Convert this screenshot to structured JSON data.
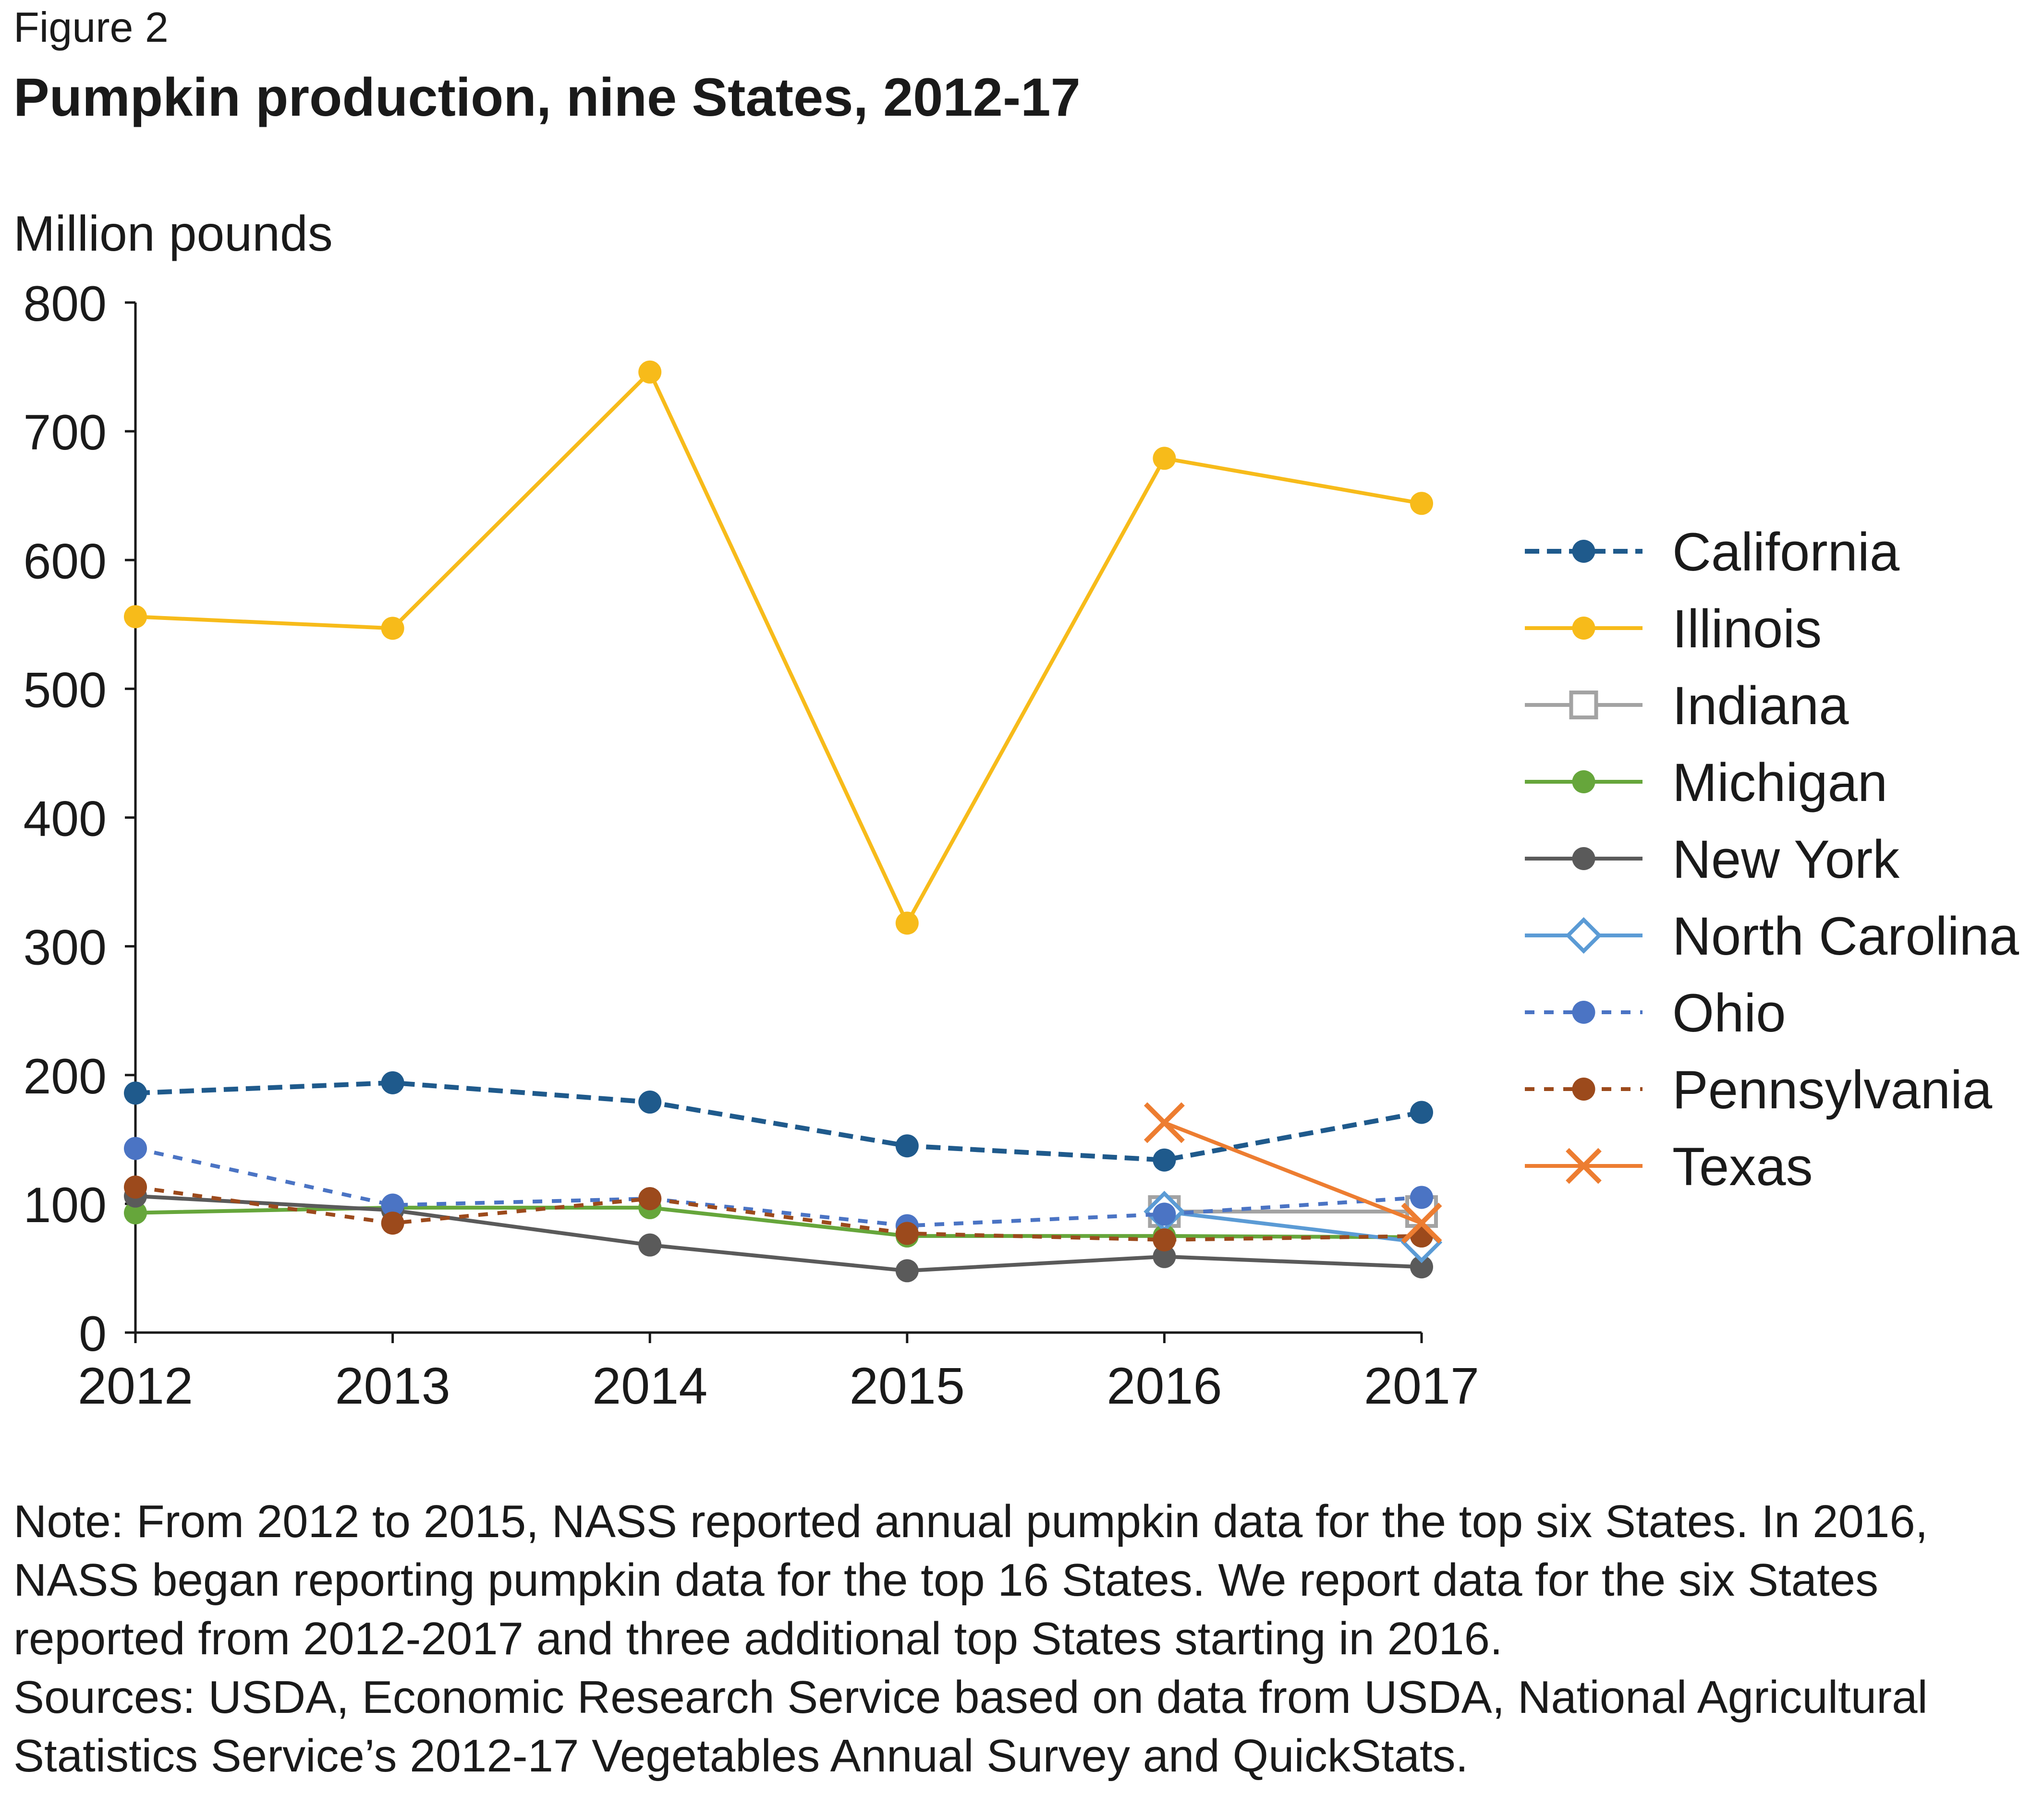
{
  "figure_label": "Figure 2",
  "title": "Pumpkin production, nine States, 2012-17",
  "note": "Note: From 2012 to 2015, NASS reported annual pumpkin data for the top six States. In 2016, NASS began reporting pumpkin data for the top 16 States. We report data for the six States reported from 2012-2017 and three additional top States starting in 2016.",
  "sources": "Sources: USDA, Economic Research Service based on data from USDA, National Agricultural Statistics Service’s 2012-17 Vegetables Annual Survey and QuickStats.",
  "chart_data": {
    "type": "line",
    "title": "Pumpkin production, nine States, 2012-17",
    "ylabel": "Million pounds",
    "xlabel": "",
    "x": [
      2012,
      2013,
      2014,
      2015,
      2016,
      2017
    ],
    "ylim": [
      0,
      800
    ],
    "yticks": [
      0,
      100,
      200,
      300,
      400,
      500,
      600,
      700,
      800
    ],
    "grid": false,
    "legend": "right",
    "series": [
      {
        "name": "California",
        "color": "#1f5a8c",
        "dash": "dashed",
        "marker": "circle",
        "values": [
          186,
          194,
          179,
          145,
          134,
          171
        ]
      },
      {
        "name": "Illinois",
        "color": "#f7bb1a",
        "dash": "solid",
        "marker": "circle",
        "values": [
          556,
          547,
          746,
          318,
          679,
          644
        ]
      },
      {
        "name": "Indiana",
        "color": "#a3a3a3",
        "dash": "solid",
        "marker": "square-open",
        "values": [
          null,
          null,
          null,
          null,
          94,
          94
        ]
      },
      {
        "name": "Michigan",
        "color": "#66a63b",
        "dash": "solid",
        "marker": "circle",
        "values": [
          93,
          97,
          97,
          75,
          75,
          74
        ]
      },
      {
        "name": "New York",
        "color": "#5a5a5a",
        "dash": "solid",
        "marker": "circle",
        "values": [
          106,
          95,
          68,
          48,
          59,
          51
        ]
      },
      {
        "name": "North Carolina",
        "color": "#5b9bd5",
        "dash": "solid",
        "marker": "diamond-open",
        "values": [
          null,
          null,
          null,
          null,
          94,
          70
        ]
      },
      {
        "name": "Ohio",
        "color": "#4b74c4",
        "dash": "dashed-fine",
        "marker": "circle",
        "values": [
          143,
          99,
          104,
          83,
          92,
          105
        ]
      },
      {
        "name": "Pennsylvania",
        "color": "#9c4a1c",
        "dash": "dashed-fine",
        "marker": "circle",
        "values": [
          113,
          85,
          104,
          77,
          72,
          75
        ]
      },
      {
        "name": "Texas",
        "color": "#ed7d31",
        "dash": "solid",
        "marker": "x",
        "values": [
          null,
          null,
          null,
          null,
          163,
          85
        ]
      }
    ]
  }
}
